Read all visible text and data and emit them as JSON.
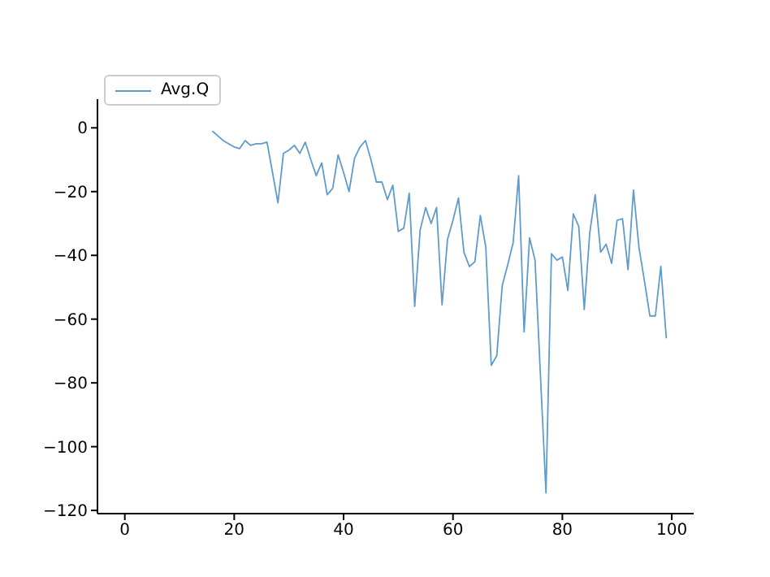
{
  "chart_data": {
    "type": "line",
    "x": [
      16,
      17,
      18,
      19,
      20,
      21,
      22,
      23,
      24,
      25,
      26,
      27,
      28,
      29,
      30,
      31,
      32,
      33,
      34,
      35,
      36,
      37,
      38,
      39,
      40,
      41,
      42,
      43,
      44,
      45,
      46,
      47,
      48,
      49,
      50,
      51,
      52,
      53,
      54,
      55,
      56,
      57,
      58,
      59,
      60,
      61,
      62,
      63,
      64,
      65,
      66,
      67,
      68,
      69,
      70,
      71,
      72,
      73,
      74,
      75,
      76,
      77,
      78,
      79,
      80,
      81,
      82,
      83,
      84,
      85,
      86,
      87,
      88,
      89,
      90,
      91,
      92,
      93,
      94,
      95,
      96,
      97,
      98,
      99
    ],
    "series": [
      {
        "name": "Avg.Q",
        "color": "#5f9ccc",
        "values": [
          -1,
          -2.5,
          -4,
          -5,
          -6,
          -6.5,
          -4,
          -5.5,
          -5,
          -5,
          -4.5,
          -14,
          -23.5,
          -8,
          -7,
          -5.5,
          -8,
          -4.5,
          -10,
          -15,
          -11,
          -21,
          -19,
          -8.5,
          -14,
          -20,
          -9.5,
          -6,
          -4,
          -10,
          -17,
          -17,
          -22.5,
          -18,
          -32.5,
          -31.5,
          -20.5,
          -56,
          -32,
          -25,
          -30,
          -25,
          -55.5,
          -35,
          -29,
          -22,
          -39,
          -43.5,
          -42,
          -27.5,
          -37.5,
          -74.5,
          -71.5,
          -49.5,
          -43,
          -36,
          -15,
          -64,
          -34.5,
          -41.5,
          -78,
          -114.5,
          -39.5,
          -41.5,
          -40.5,
          -51,
          -27,
          -31,
          -57,
          -33,
          -21,
          -39,
          -36.5,
          -42.5,
          -29,
          -28.5,
          -44.5,
          -19.5,
          -37.5,
          -48,
          -59,
          -59,
          -43.5,
          -66
        ]
      }
    ],
    "xlim": [
      -5,
      104
    ],
    "ylim": [
      -121,
      9
    ],
    "xticks": [
      0,
      20,
      40,
      60,
      80,
      100
    ],
    "yticks": [
      -120,
      -100,
      -80,
      -60,
      -40,
      -20,
      0
    ],
    "legend": "top left",
    "grid": false,
    "marker": "none",
    "line_style": "solid"
  }
}
